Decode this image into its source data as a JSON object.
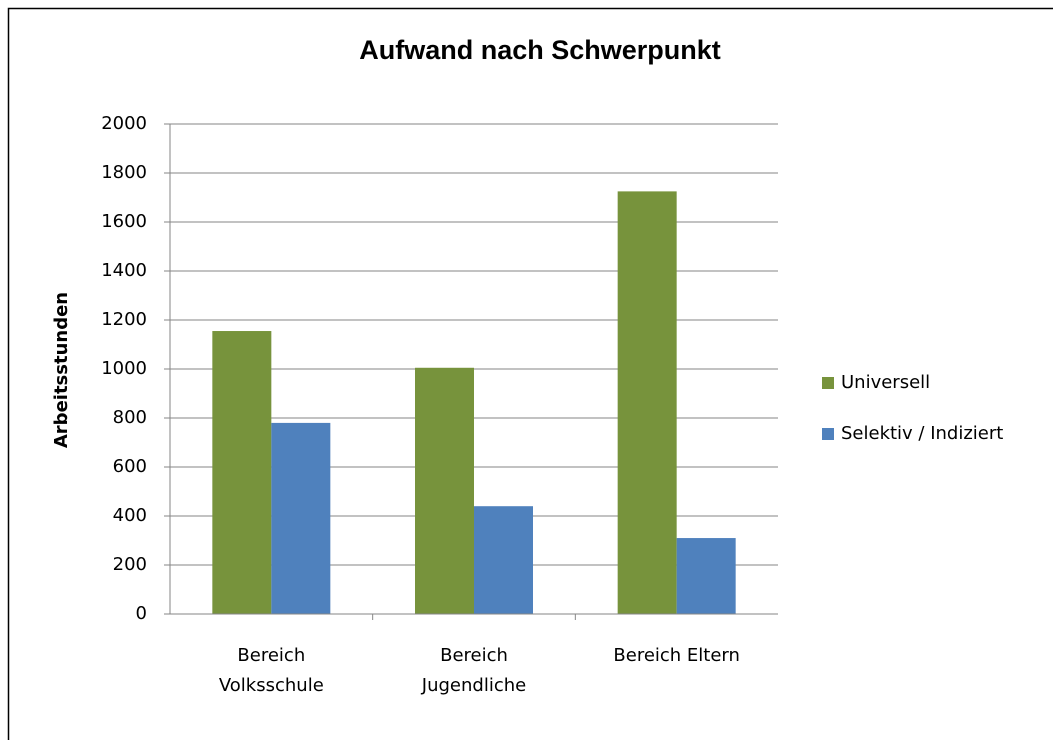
{
  "chart_data": {
    "type": "bar",
    "title": "Aufwand nach Schwerpunkt",
    "y_label": "Arbeitsstunden",
    "categories": [
      "Bereich Volksschule",
      "Bereich Jugendliche",
      "Bereich Eltern"
    ],
    "series": [
      {
        "name": "Universell",
        "color": "#77933c",
        "values": [
          1155,
          1005,
          1725
        ]
      },
      {
        "name": "Selektiv / Indiziert",
        "color": "#4f81bd",
        "values": [
          780,
          440,
          310
        ]
      }
    ],
    "ylim": [
      0,
      2000
    ],
    "yticks": [
      0,
      200,
      400,
      600,
      800,
      1000,
      1200,
      1400,
      1600,
      1800,
      2000
    ],
    "grid": true,
    "legend": "right"
  }
}
